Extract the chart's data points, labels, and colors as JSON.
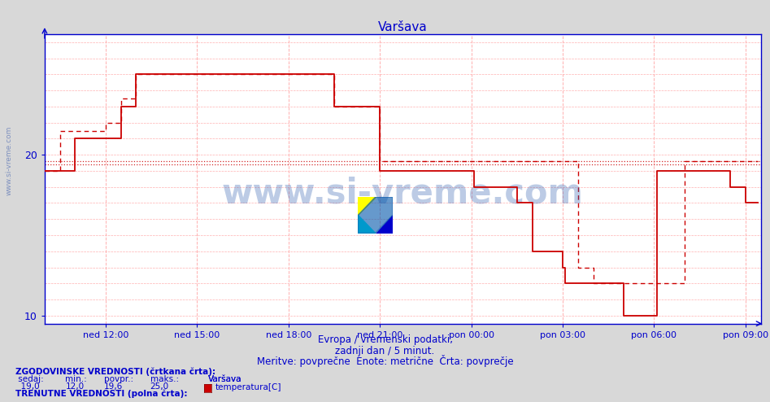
{
  "title": "Varšava",
  "title_color": "#0000cc",
  "bg_color": "#d8d8d8",
  "plot_bg_color": "#ffffff",
  "grid_color": "#ffb0b0",
  "axis_color": "#0000cc",
  "line_color": "#cc0000",
  "xlim": [
    10.0,
    33.5
  ],
  "ylim": [
    9.5,
    27.5
  ],
  "yticks": [
    10,
    20
  ],
  "xtick_labels": [
    "ned 12:00",
    "ned 15:00",
    "ned 18:00",
    "ned 21:00",
    "pon 00:00",
    "pon 03:00",
    "pon 06:00",
    "pon 09:00"
  ],
  "xtick_positions": [
    12,
    15,
    18,
    21,
    24,
    27,
    30,
    33
  ],
  "subtitle1": "Evropa / vremenski podatki,",
  "subtitle2": "zadnji dan / 5 minut.",
  "subtitle3": "Meritve: povprečne  Enote: metrične  Črta: povprečje",
  "hist_avg": 19.6,
  "curr_avg": 19.4,
  "watermark": "www.si-vreme.com",
  "curr_x": [
    10.0,
    10.5,
    11.0,
    11.5,
    12.0,
    12.5,
    13.0,
    13.5,
    14.0,
    14.5,
    15.0,
    15.5,
    16.0,
    16.5,
    17.0,
    17.5,
    18.0,
    18.5,
    19.0,
    19.5,
    19.583,
    20.0,
    20.5,
    21.0,
    21.5,
    22.0,
    22.5,
    23.0,
    23.5,
    24.0,
    24.083,
    24.5,
    25.0,
    25.5,
    26.0,
    26.5,
    27.0,
    27.083,
    27.5,
    28.0,
    28.5,
    29.0,
    29.083,
    29.5,
    30.0,
    30.083,
    30.5,
    31.0,
    31.5,
    32.0,
    32.5,
    33.0,
    33.4
  ],
  "curr_y": [
    19.0,
    19.0,
    21.0,
    21.0,
    21.0,
    23.0,
    25.0,
    25.0,
    25.0,
    25.0,
    25.0,
    25.0,
    25.0,
    25.0,
    25.0,
    25.0,
    25.0,
    25.0,
    25.0,
    23.0,
    23.0,
    23.0,
    23.0,
    19.0,
    19.0,
    19.0,
    19.0,
    19.0,
    19.0,
    19.0,
    18.0,
    18.0,
    18.0,
    17.0,
    14.0,
    14.0,
    13.0,
    12.0,
    12.0,
    12.0,
    12.0,
    10.0,
    10.0,
    10.0,
    10.0,
    19.0,
    19.0,
    19.0,
    19.0,
    19.0,
    18.0,
    17.0,
    17.0
  ],
  "hist_x": [
    10.0,
    10.5,
    11.0,
    11.5,
    12.0,
    12.5,
    13.0,
    13.5,
    14.0,
    14.5,
    15.0,
    15.5,
    16.0,
    16.5,
    17.0,
    17.5,
    18.0,
    18.5,
    19.0,
    19.5,
    19.583,
    20.0,
    20.5,
    21.0,
    21.5,
    22.0,
    22.5,
    23.0,
    23.5,
    24.0,
    24.5,
    25.0,
    25.5,
    26.0,
    26.5,
    27.0,
    27.5,
    28.0,
    28.5,
    29.0,
    29.5,
    30.0,
    30.5,
    31.0,
    31.5,
    32.0,
    32.5,
    33.0,
    33.4
  ],
  "hist_y": [
    19.0,
    21.5,
    21.5,
    21.5,
    22.0,
    23.5,
    25.0,
    25.0,
    25.0,
    25.0,
    25.0,
    25.0,
    25.0,
    25.0,
    25.0,
    25.0,
    25.0,
    25.0,
    25.0,
    23.0,
    23.0,
    23.0,
    23.0,
    19.6,
    19.6,
    19.6,
    19.6,
    19.6,
    19.6,
    19.6,
    19.6,
    19.6,
    19.6,
    19.6,
    19.6,
    19.6,
    13.0,
    12.0,
    12.0,
    12.0,
    12.0,
    12.0,
    12.0,
    19.6,
    19.6,
    19.6,
    19.6,
    19.6,
    19.6
  ]
}
